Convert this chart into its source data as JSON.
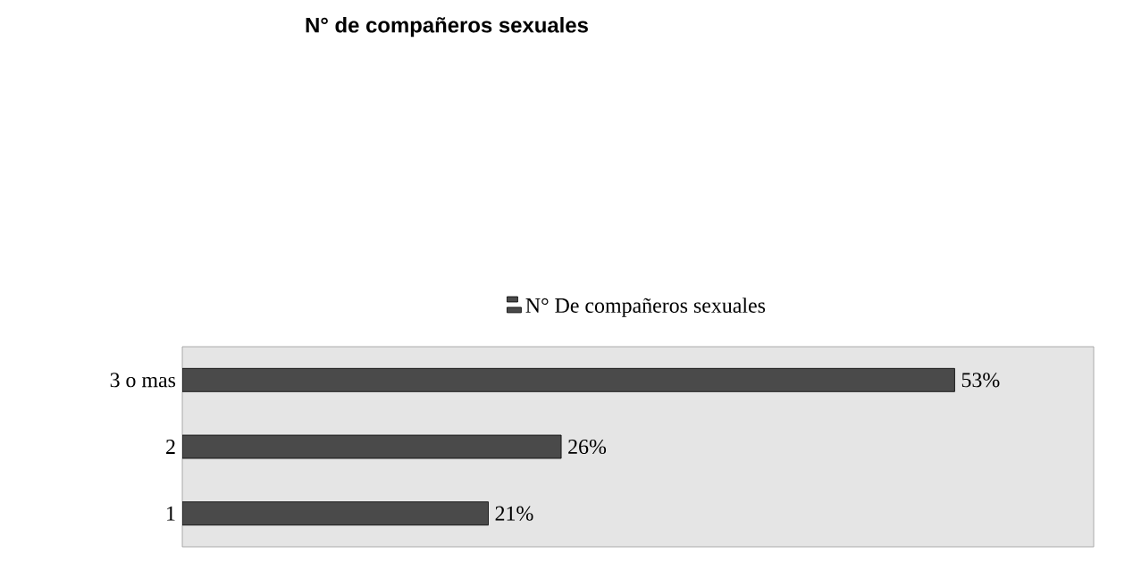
{
  "chart_data": {
    "type": "bar",
    "orientation": "horizontal",
    "title": "N° de compañeros sexuales",
    "categories": [
      "3 o mas",
      "2",
      "1"
    ],
    "series": [
      {
        "name": "N° De compañeros sexuales",
        "color": "#4a4a4a",
        "values": [
          53,
          26,
          21
        ],
        "value_labels": [
          "53%",
          "26%",
          "21%"
        ]
      }
    ],
    "legend": "top"
  }
}
